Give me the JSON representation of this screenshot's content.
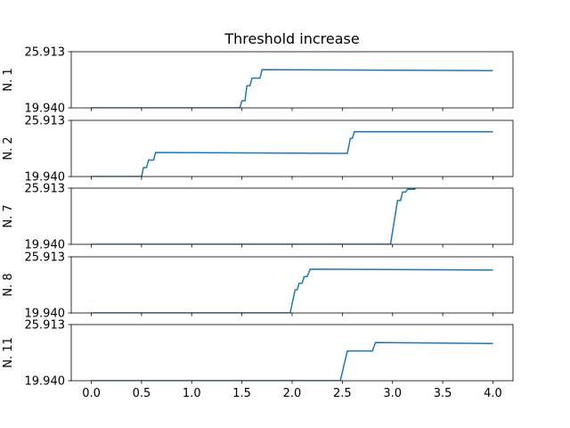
{
  "chart_data": {
    "type": "line",
    "title": "Threshold increase",
    "xlim": [
      -0.2,
      4.2
    ],
    "xticks": [
      "0.0",
      "0.5",
      "1.0",
      "1.5",
      "2.0",
      "2.5",
      "3.0",
      "3.5",
      "4.0"
    ],
    "ylim": [
      19.94,
      25.913
    ],
    "ytick_labels": [
      "19.940",
      "25.913"
    ],
    "line_color": "#1f77b4",
    "grid": false,
    "panels": [
      {
        "ylabel": "N. 1",
        "x": [
          0.0,
          1.48,
          1.5,
          1.53,
          1.55,
          1.58,
          1.6,
          1.68,
          1.7,
          4.0
        ],
        "y": [
          19.94,
          19.94,
          20.7,
          20.7,
          22.3,
          22.3,
          23.1,
          23.1,
          24.0,
          23.9
        ]
      },
      {
        "ylabel": "N. 2",
        "x": [
          0.0,
          0.5,
          0.52,
          0.55,
          0.57,
          0.62,
          0.64,
          2.55,
          2.58,
          2.6,
          2.62,
          2.64,
          4.0
        ],
        "y": [
          19.94,
          19.94,
          20.9,
          20.9,
          21.7,
          21.7,
          22.5,
          22.4,
          24.0,
          24.0,
          24.7,
          24.7,
          24.7
        ]
      },
      {
        "ylabel": "N. 7",
        "x": [
          0.0,
          2.98,
          3.05,
          3.08,
          3.1,
          3.13,
          3.15,
          3.22,
          3.24
        ],
        "y": [
          19.94,
          19.94,
          24.6,
          24.6,
          25.5,
          25.5,
          25.8,
          25.8,
          26.2
        ]
      },
      {
        "ylabel": "N. 8",
        "x": [
          0.0,
          1.98,
          2.03,
          2.05,
          2.07,
          2.1,
          2.12,
          2.15,
          2.18,
          4.0
        ],
        "y": [
          19.94,
          19.94,
          22.4,
          22.4,
          23.1,
          23.1,
          23.8,
          23.8,
          24.6,
          24.5
        ]
      },
      {
        "ylabel": "N. 11",
        "x": [
          0.0,
          2.48,
          2.55,
          2.8,
          2.83,
          4.0
        ],
        "y": [
          19.94,
          19.94,
          23.1,
          23.1,
          24.0,
          23.9
        ]
      }
    ]
  }
}
